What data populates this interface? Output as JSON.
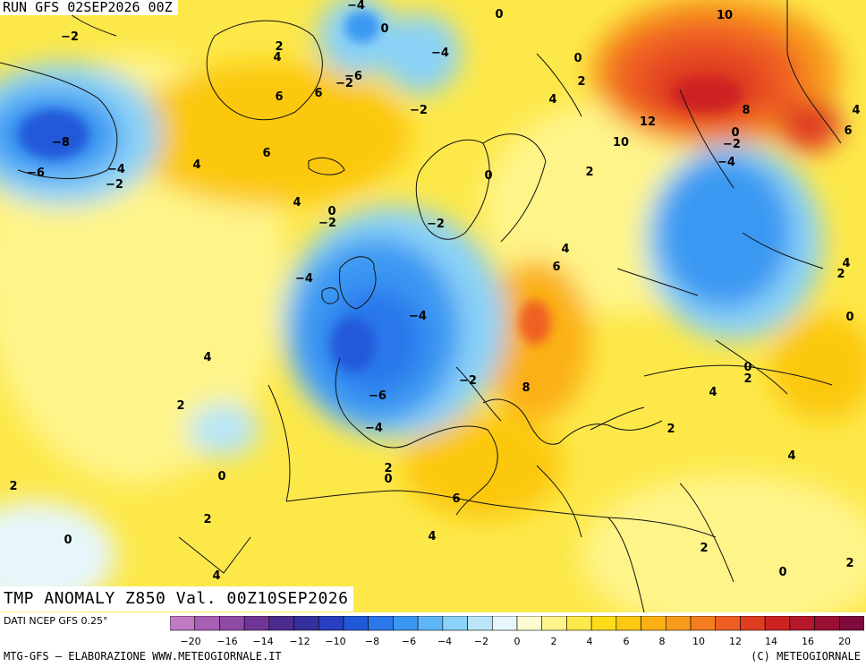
{
  "header": {
    "run_title": "RUN GFS 02SEP2026 00Z"
  },
  "map_title": "TMP ANOMALY Z850 Val. 00Z10SEP2026",
  "footer": {
    "source": "DATI NCEP GFS 0.25°",
    "credit_left": "MTG-GFS — ELABORAZIONE WWW.METEOGIORNALE.IT",
    "credit_right": "(C) METEOGIORNALE"
  },
  "colorbar": {
    "unit_steps": [
      -20,
      -18,
      -16,
      -14,
      -12,
      -10,
      -8,
      -6,
      -4,
      -2,
      0,
      2,
      4,
      6,
      8,
      10,
      12,
      14,
      16,
      18,
      20
    ],
    "tick_labels": [
      "−20",
      "−16",
      "−14",
      "−12",
      "−10",
      "−8",
      "−6",
      "−4",
      "−2",
      "0",
      "2",
      "4",
      "6",
      "8",
      "10",
      "12",
      "14",
      "16",
      "20"
    ],
    "colors": [
      "#c07ac4",
      "#a85fb6",
      "#8f4aa8",
      "#6e3596",
      "#4b2c8c",
      "#34309e",
      "#2a3fbf",
      "#2058d9",
      "#2a78ec",
      "#3a98f2",
      "#5fb6f5",
      "#8ad2f7",
      "#b8e6f8",
      "#e6f6fb",
      "#fdfbd2",
      "#fef48a",
      "#fde84a",
      "#fddc1a",
      "#fcc811",
      "#fbb114",
      "#f89a1a",
      "#f47e1f",
      "#ef5f22",
      "#e03c20",
      "#cc2222",
      "#b4162a",
      "#9a0f34",
      "#7f0a3c"
    ]
  },
  "contour_labels": [
    {
      "t": "-2"
    },
    {
      "t": "-4"
    },
    {
      "t": "0"
    },
    {
      "t": "0"
    },
    {
      "t": "10"
    },
    {
      "t": "2"
    },
    {
      "t": "4"
    },
    {
      "t": "-6"
    },
    {
      "t": "-2"
    },
    {
      "t": "6"
    },
    {
      "t": "6"
    },
    {
      "t": "-4"
    },
    {
      "t": "0"
    },
    {
      "t": "2"
    },
    {
      "t": "4"
    },
    {
      "t": "-2"
    },
    {
      "t": "-8"
    },
    {
      "t": "12"
    },
    {
      "t": "8"
    },
    {
      "t": "4"
    },
    {
      "t": "6"
    },
    {
      "t": "-6"
    },
    {
      "t": "-4"
    },
    {
      "t": "-2"
    },
    {
      "t": "4"
    },
    {
      "t": "6"
    },
    {
      "t": "10"
    },
    {
      "t": "0"
    },
    {
      "t": "-2"
    },
    {
      "t": "-4"
    },
    {
      "t": "2"
    },
    {
      "t": "0"
    },
    {
      "t": "4"
    },
    {
      "t": "0"
    },
    {
      "t": "-2"
    },
    {
      "t": "-2"
    },
    {
      "t": "4"
    },
    {
      "t": "6"
    },
    {
      "t": "-4"
    },
    {
      "t": "4"
    },
    {
      "t": "2"
    },
    {
      "t": "0"
    },
    {
      "t": "-4"
    },
    {
      "t": "4"
    },
    {
      "t": "0"
    },
    {
      "t": "2"
    },
    {
      "t": "-2"
    },
    {
      "t": "8"
    },
    {
      "t": "-6"
    },
    {
      "t": "4"
    },
    {
      "t": "2"
    },
    {
      "t": "-4"
    },
    {
      "t": "2"
    },
    {
      "t": "0"
    },
    {
      "t": "2"
    },
    {
      "t": "4"
    },
    {
      "t": "0"
    },
    {
      "t": "2"
    },
    {
      "t": "6"
    },
    {
      "t": "2"
    },
    {
      "t": "0"
    },
    {
      "t": "4"
    },
    {
      "t": "4"
    },
    {
      "t": "2"
    },
    {
      "t": "0"
    },
    {
      "t": "2"
    }
  ]
}
